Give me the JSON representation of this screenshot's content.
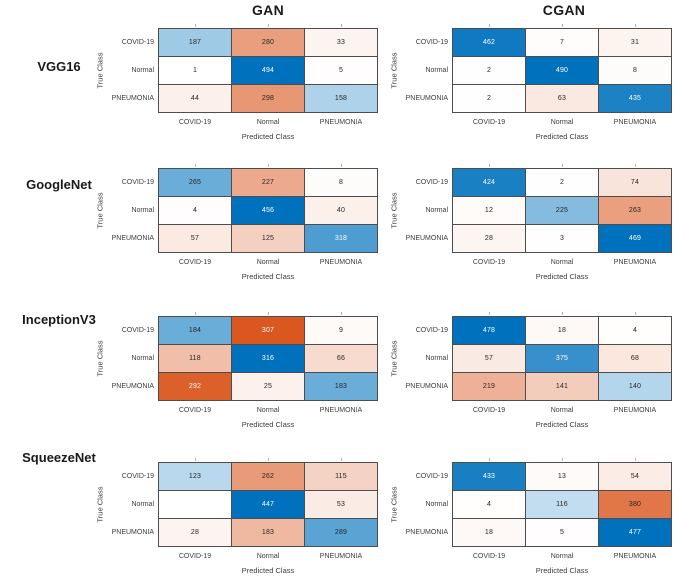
{
  "headers": {
    "columns": [
      "GAN",
      "CGAN"
    ]
  },
  "row_labels": [
    "VGG16",
    "GoogleNet",
    "InceptionV3",
    "SqueezeNet"
  ],
  "axes": {
    "x_label": "Predicted Class",
    "y_label": "True Class"
  },
  "class_labels": [
    "COVID-19",
    "Normal",
    "PNEUMONIA"
  ],
  "colors": {
    "diagonal": "#0072BD",
    "off_diagonal": "#D95319",
    "grid_line": "#4D4D4D",
    "tick_text": "#3C3C3C",
    "cell_text_dark": "#262626",
    "cell_text_light": "#FFFFFF",
    "zero_cell": "#FFFFFF",
    "background": "#FFFFFF"
  },
  "chart_data": [
    {
      "type": "heatmap",
      "model": "VGG16",
      "generator": "GAN",
      "x": [
        "COVID-19",
        "Normal",
        "PNEUMONIA"
      ],
      "y": [
        "COVID-19",
        "Normal",
        "PNEUMONIA"
      ],
      "xlabel": "Predicted Class",
      "ylabel": "True Class",
      "values": [
        [
          187,
          280,
          33
        ],
        [
          1,
          494,
          5
        ],
        [
          44,
          298,
          158
        ]
      ]
    },
    {
      "type": "heatmap",
      "model": "VGG16",
      "generator": "CGAN",
      "x": [
        "COVID-19",
        "Normal",
        "PNEUMONIA"
      ],
      "y": [
        "COVID-19",
        "Normal",
        "PNEUMONIA"
      ],
      "xlabel": "Predicted Class",
      "ylabel": "True Class",
      "values": [
        [
          462,
          7,
          31
        ],
        [
          2,
          490,
          8
        ],
        [
          2,
          63,
          435
        ]
      ]
    },
    {
      "type": "heatmap",
      "model": "GoogleNet",
      "generator": "GAN",
      "x": [
        "COVID-19",
        "Normal",
        "PNEUMONIA"
      ],
      "y": [
        "COVID-19",
        "Normal",
        "PNEUMONIA"
      ],
      "xlabel": "Predicted Class",
      "ylabel": "True Class",
      "values": [
        [
          265,
          227,
          8
        ],
        [
          4,
          456,
          40
        ],
        [
          57,
          125,
          318
        ]
      ]
    },
    {
      "type": "heatmap",
      "model": "GoogleNet",
      "generator": "CGAN",
      "x": [
        "COVID-19",
        "Normal",
        "PNEUMONIA"
      ],
      "y": [
        "COVID-19",
        "Normal",
        "PNEUMONIA"
      ],
      "xlabel": "Predicted Class",
      "ylabel": "True Class",
      "values": [
        [
          424,
          2,
          74
        ],
        [
          12,
          225,
          263
        ],
        [
          28,
          3,
          469
        ]
      ]
    },
    {
      "type": "heatmap",
      "model": "InceptionV3",
      "generator": "GAN",
      "x": [
        "COVID-19",
        "Normal",
        "PNEUMONIA"
      ],
      "y": [
        "COVID-19",
        "Normal",
        "PNEUMONIA"
      ],
      "xlabel": "Predicted Class",
      "ylabel": "True Class",
      "values": [
        [
          184,
          307,
          9
        ],
        [
          118,
          316,
          66
        ],
        [
          292,
          25,
          183
        ]
      ]
    },
    {
      "type": "heatmap",
      "model": "InceptionV3",
      "generator": "CGAN",
      "x": [
        "COVID-19",
        "Normal",
        "PNEUMONIA"
      ],
      "y": [
        "COVID-19",
        "Normal",
        "PNEUMONIA"
      ],
      "xlabel": "Predicted Class",
      "ylabel": "True Class",
      "values": [
        [
          478,
          18,
          4
        ],
        [
          57,
          375,
          68
        ],
        [
          219,
          141,
          140
        ]
      ]
    },
    {
      "type": "heatmap",
      "model": "SqueezeNet",
      "generator": "GAN",
      "x": [
        "COVID-19",
        "Normal",
        "PNEUMONIA"
      ],
      "y": [
        "COVID-19",
        "Normal",
        "PNEUMONIA"
      ],
      "xlabel": "Predicted Class",
      "ylabel": "True Class",
      "values": [
        [
          123,
          262,
          115
        ],
        [
          0,
          447,
          53
        ],
        [
          28,
          183,
          289
        ]
      ]
    },
    {
      "type": "heatmap",
      "model": "SqueezeNet",
      "generator": "CGAN",
      "x": [
        "COVID-19",
        "Normal",
        "PNEUMONIA"
      ],
      "y": [
        "COVID-19",
        "Normal",
        "PNEUMONIA"
      ],
      "xlabel": "Predicted Class",
      "ylabel": "True Class",
      "values": [
        [
          433,
          13,
          54
        ],
        [
          4,
          116,
          380
        ],
        [
          18,
          5,
          477
        ]
      ]
    }
  ]
}
